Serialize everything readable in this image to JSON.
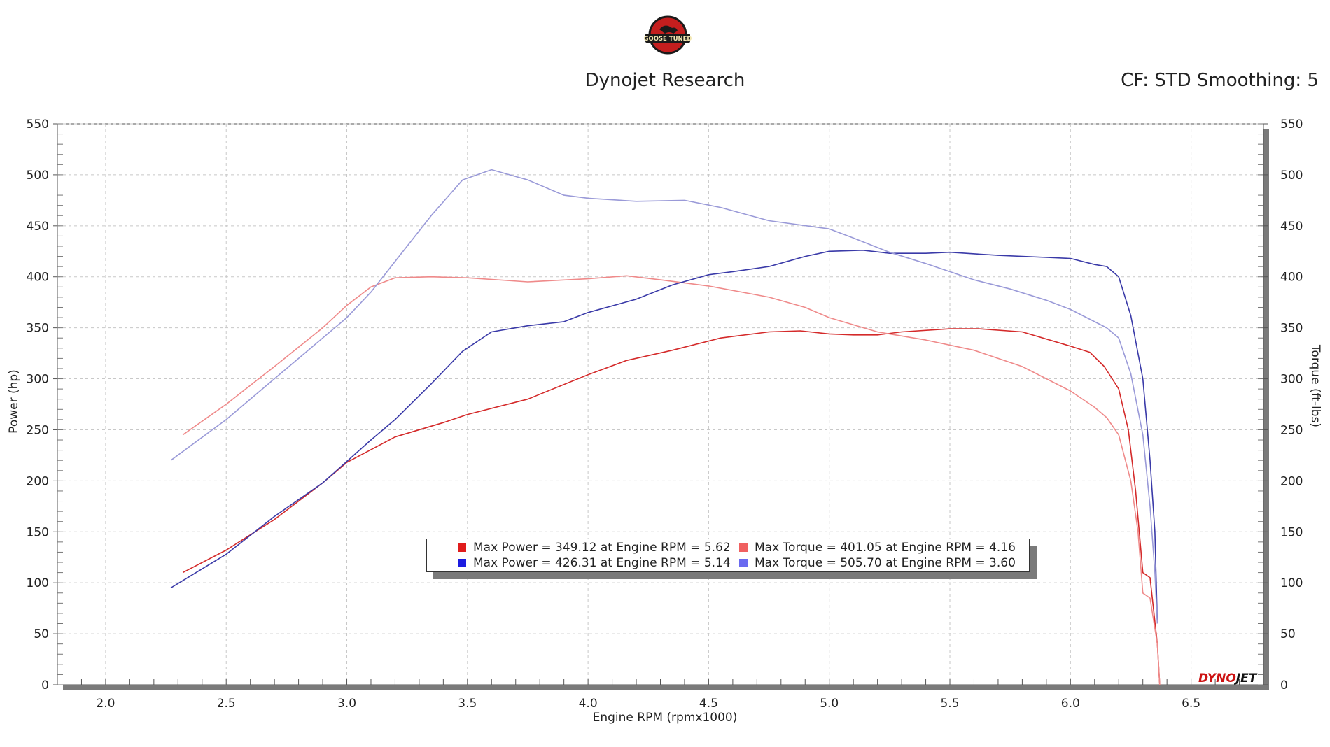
{
  "header": {
    "logo_text": "GOOSE TUNED",
    "title": "Dynojet Research",
    "cf_text": "CF: STD Smoothing: 5"
  },
  "brand": {
    "part1": "DYNO",
    "part2": "JET"
  },
  "colors": {
    "power_red": "#d42a2a",
    "torque_red": "#ef8a8a",
    "power_blue": "#3a3aa8",
    "torque_blue": "#9a9ad8",
    "swatch_red": "#e01c1c",
    "swatch_blue": "#1c1ce0",
    "swatch_lightred": "#f06060",
    "swatch_lightblue": "#6a6af0"
  },
  "legend": [
    {
      "color": "#e01c1c",
      "text": "Max Power = 349.12 at Engine RPM = 5.62"
    },
    {
      "color": "#f06060",
      "text": "Max Torque = 401.05 at Engine RPM = 4.16"
    },
    {
      "color": "#1c1ce0",
      "text": "Max Power = 426.31 at Engine RPM = 5.14"
    },
    {
      "color": "#6a6af0",
      "text": "Max Torque = 505.70 at Engine RPM = 3.60"
    }
  ],
  "chart_data": {
    "type": "line",
    "xlabel": "Engine RPM (rpmx1000)",
    "ylabel": "Power (hp)",
    "y2label": "Torque (ft-lbs)",
    "xlim": [
      1.8,
      6.8
    ],
    "ylim": [
      0,
      550
    ],
    "y2lim": [
      0,
      550
    ],
    "grid": true,
    "legend_position": "bottom-center",
    "x_ticks": [
      "2.0",
      "2.5",
      "3.0",
      "3.5",
      "4.0",
      "4.5",
      "5.0",
      "5.5",
      "6.0",
      "6.5"
    ],
    "y_ticks": [
      "0",
      "50",
      "100",
      "150",
      "200",
      "250",
      "300",
      "350",
      "400",
      "450",
      "500",
      "550"
    ],
    "series": [
      {
        "name": "Max Power = 349.12 at Engine RPM = 5.62",
        "axis": "left",
        "color": "#d42a2a",
        "points": [
          [
            2.32,
            110
          ],
          [
            2.5,
            132
          ],
          [
            2.7,
            162
          ],
          [
            2.9,
            198
          ],
          [
            3.0,
            218
          ],
          [
            3.2,
            243
          ],
          [
            3.4,
            257
          ],
          [
            3.5,
            265
          ],
          [
            3.75,
            280
          ],
          [
            4.0,
            304
          ],
          [
            4.16,
            318
          ],
          [
            4.35,
            328
          ],
          [
            4.55,
            340
          ],
          [
            4.75,
            346
          ],
          [
            4.88,
            347
          ],
          [
            5.0,
            344
          ],
          [
            5.1,
            343
          ],
          [
            5.2,
            343
          ],
          [
            5.3,
            346
          ],
          [
            5.5,
            349
          ],
          [
            5.62,
            349
          ],
          [
            5.8,
            346
          ],
          [
            6.0,
            332
          ],
          [
            6.08,
            326
          ],
          [
            6.14,
            312
          ],
          [
            6.2,
            290
          ],
          [
            6.24,
            250
          ],
          [
            6.27,
            190
          ],
          [
            6.3,
            110
          ],
          [
            6.33,
            105
          ],
          [
            6.36,
            40
          ],
          [
            6.37,
            0
          ]
        ]
      },
      {
        "name": "Max Torque = 401.05 at Engine RPM = 4.16",
        "axis": "right",
        "color": "#ef8a8a",
        "points": [
          [
            2.32,
            245
          ],
          [
            2.5,
            275
          ],
          [
            2.7,
            312
          ],
          [
            2.9,
            350
          ],
          [
            3.0,
            372
          ],
          [
            3.1,
            390
          ],
          [
            3.2,
            399
          ],
          [
            3.35,
            400
          ],
          [
            3.5,
            399
          ],
          [
            3.75,
            395
          ],
          [
            4.0,
            398
          ],
          [
            4.16,
            401
          ],
          [
            4.3,
            397
          ],
          [
            4.5,
            391
          ],
          [
            4.75,
            380
          ],
          [
            4.9,
            370
          ],
          [
            5.0,
            360
          ],
          [
            5.2,
            346
          ],
          [
            5.4,
            338
          ],
          [
            5.6,
            328
          ],
          [
            5.8,
            312
          ],
          [
            6.0,
            288
          ],
          [
            6.1,
            272
          ],
          [
            6.15,
            262
          ],
          [
            6.2,
            245
          ],
          [
            6.25,
            200
          ],
          [
            6.28,
            150
          ],
          [
            6.3,
            90
          ],
          [
            6.33,
            85
          ],
          [
            6.36,
            40
          ],
          [
            6.37,
            0
          ]
        ]
      },
      {
        "name": "Max Power = 426.31 at Engine RPM = 5.14",
        "axis": "left",
        "color": "#3a3aa8",
        "points": [
          [
            2.27,
            95
          ],
          [
            2.5,
            128
          ],
          [
            2.7,
            165
          ],
          [
            2.9,
            198
          ],
          [
            3.1,
            240
          ],
          [
            3.2,
            260
          ],
          [
            3.35,
            295
          ],
          [
            3.48,
            327
          ],
          [
            3.6,
            346
          ],
          [
            3.75,
            352
          ],
          [
            3.9,
            356
          ],
          [
            4.0,
            365
          ],
          [
            4.2,
            378
          ],
          [
            4.35,
            392
          ],
          [
            4.5,
            402
          ],
          [
            4.6,
            405
          ],
          [
            4.75,
            410
          ],
          [
            4.9,
            420
          ],
          [
            5.0,
            425
          ],
          [
            5.14,
            426
          ],
          [
            5.25,
            423
          ],
          [
            5.4,
            423
          ],
          [
            5.5,
            424
          ],
          [
            5.7,
            421
          ],
          [
            5.9,
            419
          ],
          [
            6.0,
            418
          ],
          [
            6.1,
            412
          ],
          [
            6.15,
            410
          ],
          [
            6.2,
            400
          ],
          [
            6.25,
            362
          ],
          [
            6.3,
            300
          ],
          [
            6.33,
            220
          ],
          [
            6.35,
            150
          ],
          [
            6.36,
            60
          ]
        ]
      },
      {
        "name": "Max Torque = 505.70 at Engine RPM = 3.60",
        "axis": "right",
        "color": "#9a9ad8",
        "points": [
          [
            2.27,
            220
          ],
          [
            2.5,
            260
          ],
          [
            2.7,
            300
          ],
          [
            2.9,
            340
          ],
          [
            3.0,
            360
          ],
          [
            3.1,
            385
          ],
          [
            3.2,
            415
          ],
          [
            3.35,
            460
          ],
          [
            3.48,
            495
          ],
          [
            3.6,
            505
          ],
          [
            3.75,
            495
          ],
          [
            3.9,
            480
          ],
          [
            4.0,
            477
          ],
          [
            4.2,
            474
          ],
          [
            4.4,
            475
          ],
          [
            4.55,
            468
          ],
          [
            4.75,
            455
          ],
          [
            5.0,
            447
          ],
          [
            5.1,
            438
          ],
          [
            5.25,
            424
          ],
          [
            5.4,
            413
          ],
          [
            5.5,
            405
          ],
          [
            5.6,
            397
          ],
          [
            5.75,
            388
          ],
          [
            5.9,
            377
          ],
          [
            6.0,
            368
          ],
          [
            6.1,
            356
          ],
          [
            6.15,
            350
          ],
          [
            6.2,
            340
          ],
          [
            6.25,
            305
          ],
          [
            6.3,
            245
          ],
          [
            6.33,
            175
          ],
          [
            6.35,
            110
          ],
          [
            6.36,
            60
          ]
        ]
      }
    ]
  }
}
